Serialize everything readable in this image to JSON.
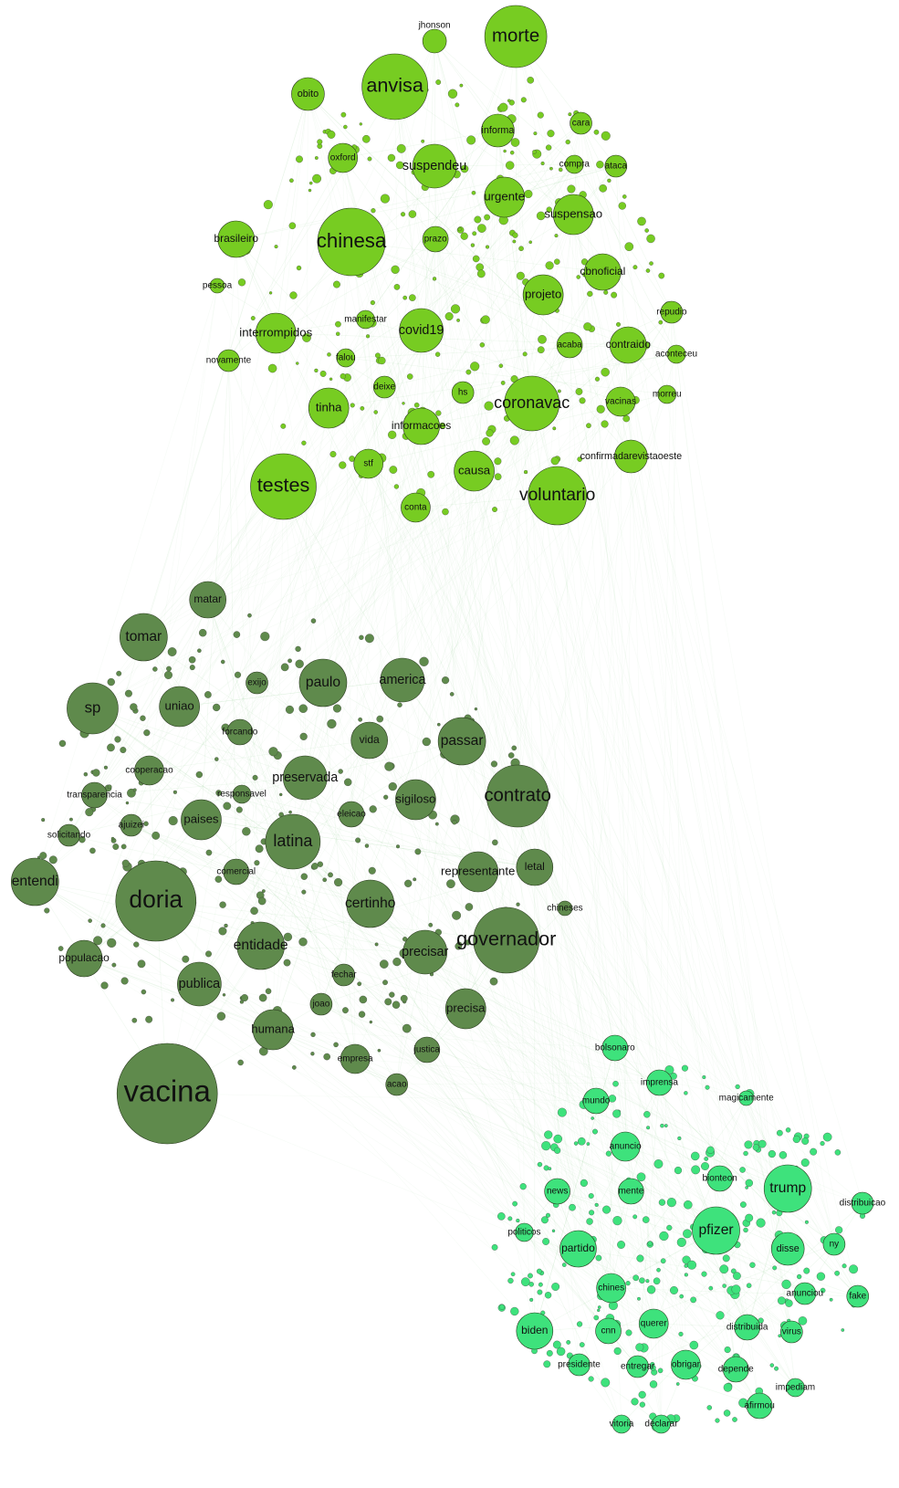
{
  "clusters": [
    {
      "color": "#77cc22",
      "nodes": [
        {
          "label": "jhonson"
        },
        {
          "label": "morte"
        },
        {
          "label": "anvisa"
        },
        {
          "label": "obito"
        },
        {
          "label": "informa"
        },
        {
          "label": "cara"
        },
        {
          "label": "oxford"
        },
        {
          "label": "suspendeu"
        },
        {
          "label": "compra"
        },
        {
          "label": "ataca"
        },
        {
          "label": "urgente"
        },
        {
          "label": "suspensao"
        },
        {
          "label": "brasileiro"
        },
        {
          "label": "chinesa"
        },
        {
          "label": "prazo"
        },
        {
          "label": "cbnoficial"
        },
        {
          "label": "projeto"
        },
        {
          "label": "repudio"
        },
        {
          "label": "pessoa"
        },
        {
          "label": "interrompidos"
        },
        {
          "label": "manifestar"
        },
        {
          "label": "covid19"
        },
        {
          "label": "acaba"
        },
        {
          "label": "contraido"
        },
        {
          "label": "aconteceu"
        },
        {
          "label": "novamente"
        },
        {
          "label": "falou"
        },
        {
          "label": "deixe"
        },
        {
          "label": "hs"
        },
        {
          "label": "tinha"
        },
        {
          "label": "coronavac"
        },
        {
          "label": "vacinas"
        },
        {
          "label": "morreu"
        },
        {
          "label": "informacoes"
        },
        {
          "label": "confirmadarevistaoeste"
        },
        {
          "label": "stf"
        },
        {
          "label": "causa"
        },
        {
          "label": "testes"
        },
        {
          "label": "voluntario"
        },
        {
          "label": "conta"
        }
      ]
    },
    {
      "color": "#5f8a4c",
      "nodes": [
        {
          "label": "matar"
        },
        {
          "label": "tomar"
        },
        {
          "label": "exijo"
        },
        {
          "label": "paulo"
        },
        {
          "label": "america"
        },
        {
          "label": "sp"
        },
        {
          "label": "uniao"
        },
        {
          "label": "forcando"
        },
        {
          "label": "vida"
        },
        {
          "label": "passar"
        },
        {
          "label": "cooperacao"
        },
        {
          "label": "preservada"
        },
        {
          "label": "responsavel"
        },
        {
          "label": "sigiloso"
        },
        {
          "label": "contrato"
        },
        {
          "label": "transparencia"
        },
        {
          "label": "paises"
        },
        {
          "label": "ajuizei"
        },
        {
          "label": "eleicao"
        },
        {
          "label": "solicitando"
        },
        {
          "label": "latina"
        },
        {
          "label": "representante"
        },
        {
          "label": "letal"
        },
        {
          "label": "entendi"
        },
        {
          "label": "doria"
        },
        {
          "label": "comercial"
        },
        {
          "label": "certinho"
        },
        {
          "label": "chineses"
        },
        {
          "label": "governador"
        },
        {
          "label": "entidade"
        },
        {
          "label": "precisar"
        },
        {
          "label": "populacao"
        },
        {
          "label": "publica"
        },
        {
          "label": "fechar"
        },
        {
          "label": "precisa"
        },
        {
          "label": "joao"
        },
        {
          "label": "humana"
        },
        {
          "label": "justica"
        },
        {
          "label": "empresa"
        },
        {
          "label": "acao"
        },
        {
          "label": "vacina"
        }
      ]
    },
    {
      "color": "#3ee27c",
      "nodes": [
        {
          "label": "bolsonaro"
        },
        {
          "label": "imprensa"
        },
        {
          "label": "magicamente"
        },
        {
          "label": "mundo"
        },
        {
          "label": "anuncio"
        },
        {
          "label": "trump"
        },
        {
          "label": "bionteon"
        },
        {
          "label": "distribuicao"
        },
        {
          "label": "news"
        },
        {
          "label": "mente"
        },
        {
          "label": "pfizer"
        },
        {
          "label": "politicos"
        },
        {
          "label": "partido"
        },
        {
          "label": "disse"
        },
        {
          "label": "ny"
        },
        {
          "label": "chines"
        },
        {
          "label": "anunciou"
        },
        {
          "label": "fake"
        },
        {
          "label": "biden"
        },
        {
          "label": "cnn"
        },
        {
          "label": "querer"
        },
        {
          "label": "distribuida"
        },
        {
          "label": "virus"
        },
        {
          "label": "presidente"
        },
        {
          "label": "entregar"
        },
        {
          "label": "obrigar"
        },
        {
          "label": "depende"
        },
        {
          "label": "impediam"
        },
        {
          "label": "afirmou"
        },
        {
          "label": "vitoria"
        },
        {
          "label": "declarar"
        }
      ]
    }
  ]
}
